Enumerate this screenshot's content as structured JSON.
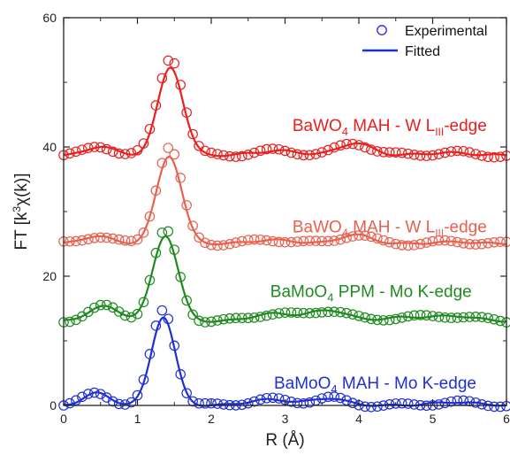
{
  "chart_data": {
    "type": "line",
    "xlabel": "R (Å)",
    "ylabel_parts": {
      "base": "FT [k",
      "sup": "3",
      "tail": "χ(k)]"
    },
    "xlim": [
      0,
      6
    ],
    "ylim": [
      0,
      60
    ],
    "x_ticks": [
      0,
      1,
      2,
      3,
      4,
      5,
      6
    ],
    "y_ticks": [
      0,
      20,
      40,
      60
    ],
    "x_tick_labels": [
      "0",
      "1",
      "2",
      "3",
      "4",
      "5",
      "6"
    ],
    "y_tick_labels": [
      "0",
      "20",
      "40",
      "60"
    ],
    "legend": {
      "position": "top-right",
      "entries": [
        {
          "label": "Experimental",
          "style": "open-circle",
          "color": "#2a2adf"
        },
        {
          "label": "Fitted",
          "style": "line",
          "color": "#1f2fd6"
        }
      ]
    },
    "series": [
      {
        "label_parts": {
          "pre": "BaWO",
          "sub1": "4",
          "mid": " MAH - W L",
          "sub2": "III",
          "post": "-edge"
        },
        "color": "#e8201e",
        "label_pos": [
          3.1,
          42.5
        ],
        "offset": 38.7,
        "peak": {
          "center": 1.45,
          "height": 13.6,
          "width": 0.17
        },
        "features": [
          [
            0.5,
            1.4,
            0.18
          ],
          [
            2.9,
            0.7,
            0.3
          ],
          [
            3.95,
            1.9,
            0.22
          ],
          [
            5.2,
            0.4,
            0.3
          ]
        ],
        "exp_scale": 1.12,
        "wiggle": 0.35
      },
      {
        "label_parts": {
          "pre": "BaWO",
          "sub1": "4",
          "mid": " MAH - W L",
          "sub2": "III",
          "post": "-edge"
        },
        "color": "#e8604e",
        "label_pos": [
          3.1,
          26.8
        ],
        "offset": 25.0,
        "peak": {
          "center": 1.43,
          "height": 13.6,
          "width": 0.17
        },
        "features": [
          [
            0.45,
            1.2,
            0.2
          ],
          [
            2.85,
            0.6,
            0.3
          ],
          [
            3.95,
            1.4,
            0.22
          ],
          [
            5.3,
            0.3,
            0.3
          ]
        ],
        "exp_scale": 1.1,
        "wiggle": 0.3
      },
      {
        "label_parts": {
          "pre": "BaMoO",
          "sub1": "4",
          "mid": " PPM - Mo K-edge",
          "sub2": "",
          "post": ""
        },
        "color": "#1f8a1f",
        "label_pos": [
          2.8,
          16.8
        ],
        "offset": 13.0,
        "peak": {
          "center": 1.38,
          "height": 13.3,
          "width": 0.17
        },
        "features": [
          [
            0.55,
            2.3,
            0.22
          ],
          [
            2.85,
            1.2,
            0.3
          ],
          [
            3.6,
            1.7,
            0.25
          ],
          [
            4.6,
            0.6,
            0.3
          ],
          [
            5.3,
            0.8,
            0.3
          ]
        ],
        "exp_scale": 1.05,
        "wiggle": 0.3
      },
      {
        "label_parts": {
          "pre": "BaMoO",
          "sub1": "4",
          "mid": " MAH - Mo K-edge",
          "sub2": "",
          "post": ""
        },
        "color": "#1f2fd6",
        "label_pos": [
          2.85,
          2.6
        ],
        "offset": 0.0,
        "peak": {
          "center": 1.35,
          "height": 13.7,
          "width": 0.16
        },
        "features": [
          [
            0.45,
            1.9,
            0.18
          ],
          [
            2.8,
            0.9,
            0.3
          ],
          [
            3.6,
            1.1,
            0.22
          ],
          [
            5.3,
            0.5,
            0.3
          ]
        ],
        "exp_scale": 1.08,
        "wiggle": 0.3
      }
    ]
  }
}
